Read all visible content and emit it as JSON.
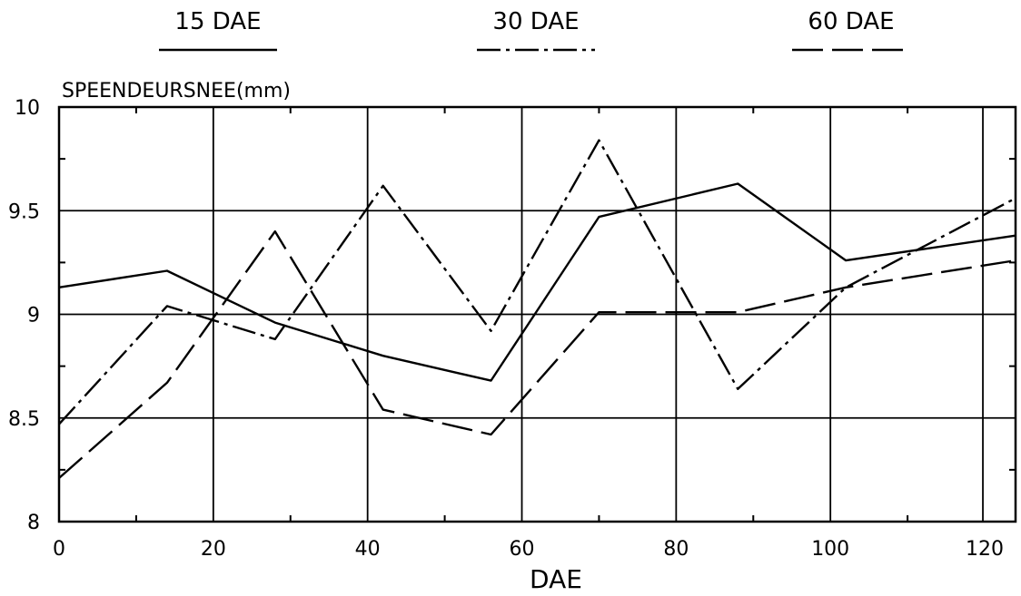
{
  "chart_data": {
    "type": "line",
    "title": "",
    "xlabel": "DAE",
    "ylabel": "SPEENDEURSNEE(mm)",
    "xlim": [
      0,
      124
    ],
    "ylim": [
      8,
      10
    ],
    "xticks": [
      0,
      20,
      40,
      60,
      80,
      100,
      120
    ],
    "xtick_labels": [
      "0",
      "20",
      "40",
      "60",
      "80",
      "100",
      "120"
    ],
    "yticks": [
      8,
      8.5,
      9,
      9.5,
      10
    ],
    "ytick_labels": [
      "8",
      "8.5",
      "9",
      "9.5",
      "10"
    ],
    "grid": true,
    "legend_position": "top",
    "series": [
      {
        "name": "15 DAE",
        "dash": "solid",
        "x": [
          0,
          14,
          28,
          42,
          56,
          70,
          88,
          102,
          124
        ],
        "y": [
          9.13,
          9.21,
          8.96,
          8.8,
          8.68,
          9.47,
          9.63,
          9.26,
          9.38
        ]
      },
      {
        "name": "30 DAE",
        "dash": "dash-dot",
        "x": [
          0,
          14,
          28,
          42,
          56,
          70,
          88,
          102,
          124
        ],
        "y": [
          8.47,
          9.04,
          8.88,
          9.62,
          8.92,
          9.84,
          8.64,
          9.13,
          9.56
        ]
      },
      {
        "name": "60 DAE",
        "dash": "long-dash",
        "x": [
          0,
          14,
          28,
          42,
          56,
          70,
          88,
          102,
          124
        ],
        "y": [
          8.21,
          8.67,
          9.4,
          8.54,
          8.42,
          9.01,
          9.01,
          9.13,
          9.26
        ]
      }
    ]
  }
}
